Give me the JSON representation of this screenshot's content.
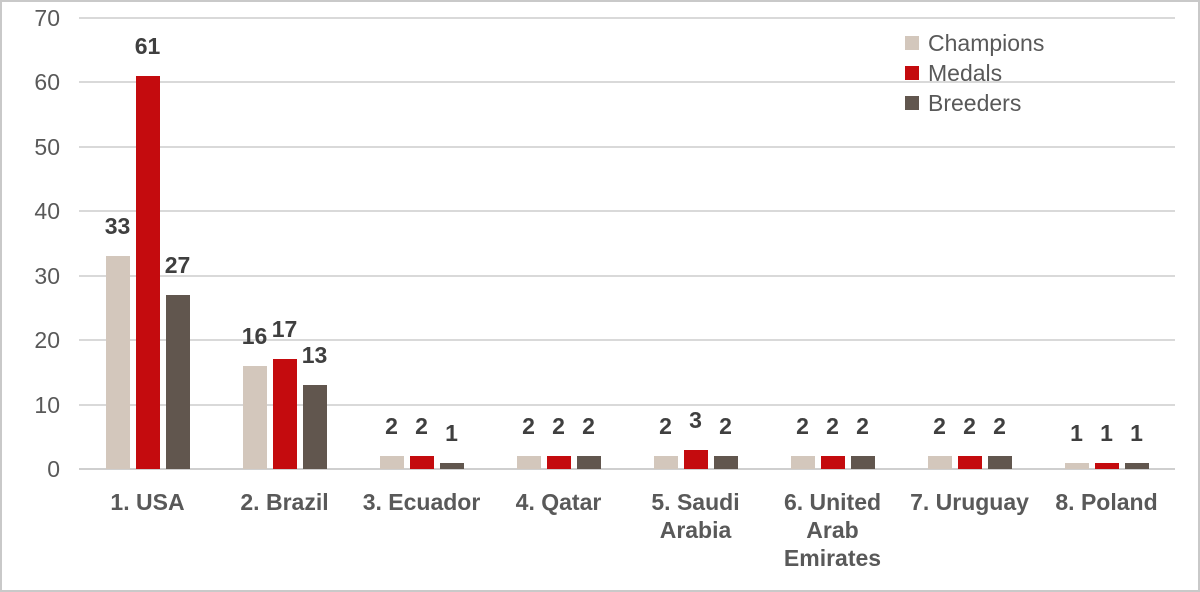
{
  "chart_data": {
    "type": "bar",
    "title": "",
    "categories": [
      "1. USA",
      "2. Brazil",
      "3. Ecuador",
      "4. Qatar",
      "5. Saudi Arabia",
      "6. United Arab Emirates",
      "7. Uruguay",
      "8. Poland"
    ],
    "series": [
      {
        "name": "Champions",
        "color": "#d3c7bc",
        "values": [
          33,
          16,
          2,
          2,
          2,
          2,
          2,
          1
        ]
      },
      {
        "name": "Medals",
        "color": "#c40b0e",
        "values": [
          61,
          17,
          2,
          2,
          3,
          2,
          2,
          1
        ]
      },
      {
        "name": "Breeders",
        "color": "#61564e",
        "values": [
          27,
          13,
          1,
          2,
          2,
          2,
          2,
          1
        ]
      }
    ],
    "data_labels_shown": true,
    "xlabel": "",
    "ylabel": "",
    "ylim": [
      0,
      70
    ],
    "y_ticks": [
      "0",
      "10",
      "20",
      "30",
      "40",
      "50",
      "60",
      "70"
    ],
    "grid": true,
    "legend_position": "top-right"
  },
  "style": {
    "grid_color": "#d9d9d9",
    "axis_color": "#cfcfcf",
    "tick_text_color": "#595959",
    "category_text_color": "#595959",
    "data_label_color": "#3f3f3f",
    "legend_text_color": "#595959",
    "background": "#ffffff",
    "border_color": "#c9c9c9"
  }
}
